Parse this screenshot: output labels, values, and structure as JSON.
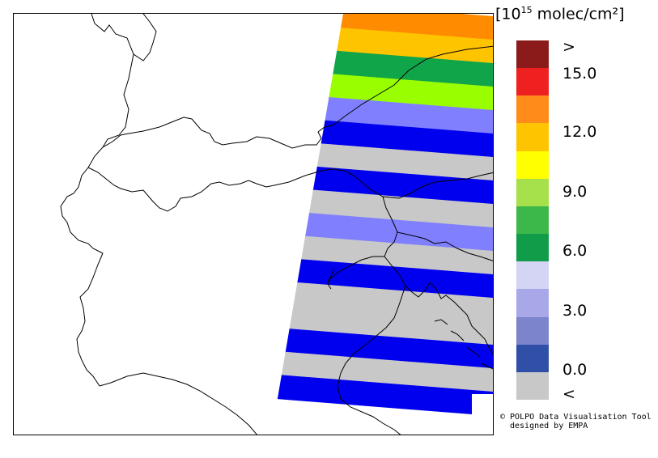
{
  "units": {
    "prefix": "[10",
    "exponent": "15",
    "suffix": " molec/cm²]"
  },
  "legend": {
    "colors": [
      "#8b1a1a",
      "#ee2020",
      "#ff8c1a",
      "#ffc400",
      "#ffff00",
      "#a6e04a",
      "#3cb84a",
      "#119c4a",
      "#d4d4f5",
      "#a8a8e8",
      "#7c84cc",
      "#3050a8",
      "#c8c8c8"
    ],
    "labels": [
      ">",
      "15.0",
      "12.0",
      "9.0",
      "6.0",
      "3.0",
      "0.0",
      "<"
    ]
  },
  "band_colors": {
    "grey": "#c8c8c8",
    "blue": "#0000ee",
    "light_blue": "#8080ff",
    "lime": "#99ff00",
    "green": "#11a54a",
    "amber": "#ffc400",
    "orange": "#ff8c00"
  },
  "swath_bands": [
    "orange",
    "amber",
    "green",
    "lime",
    "light_blue",
    "blue",
    "grey",
    "blue",
    "grey",
    "light_blue",
    "grey",
    "blue",
    "grey",
    "grey",
    "blue",
    "grey",
    "blue"
  ],
  "credit": {
    "line1": "© POLPO Data Visualisation Tool",
    "line2": "designed by EMPA"
  }
}
